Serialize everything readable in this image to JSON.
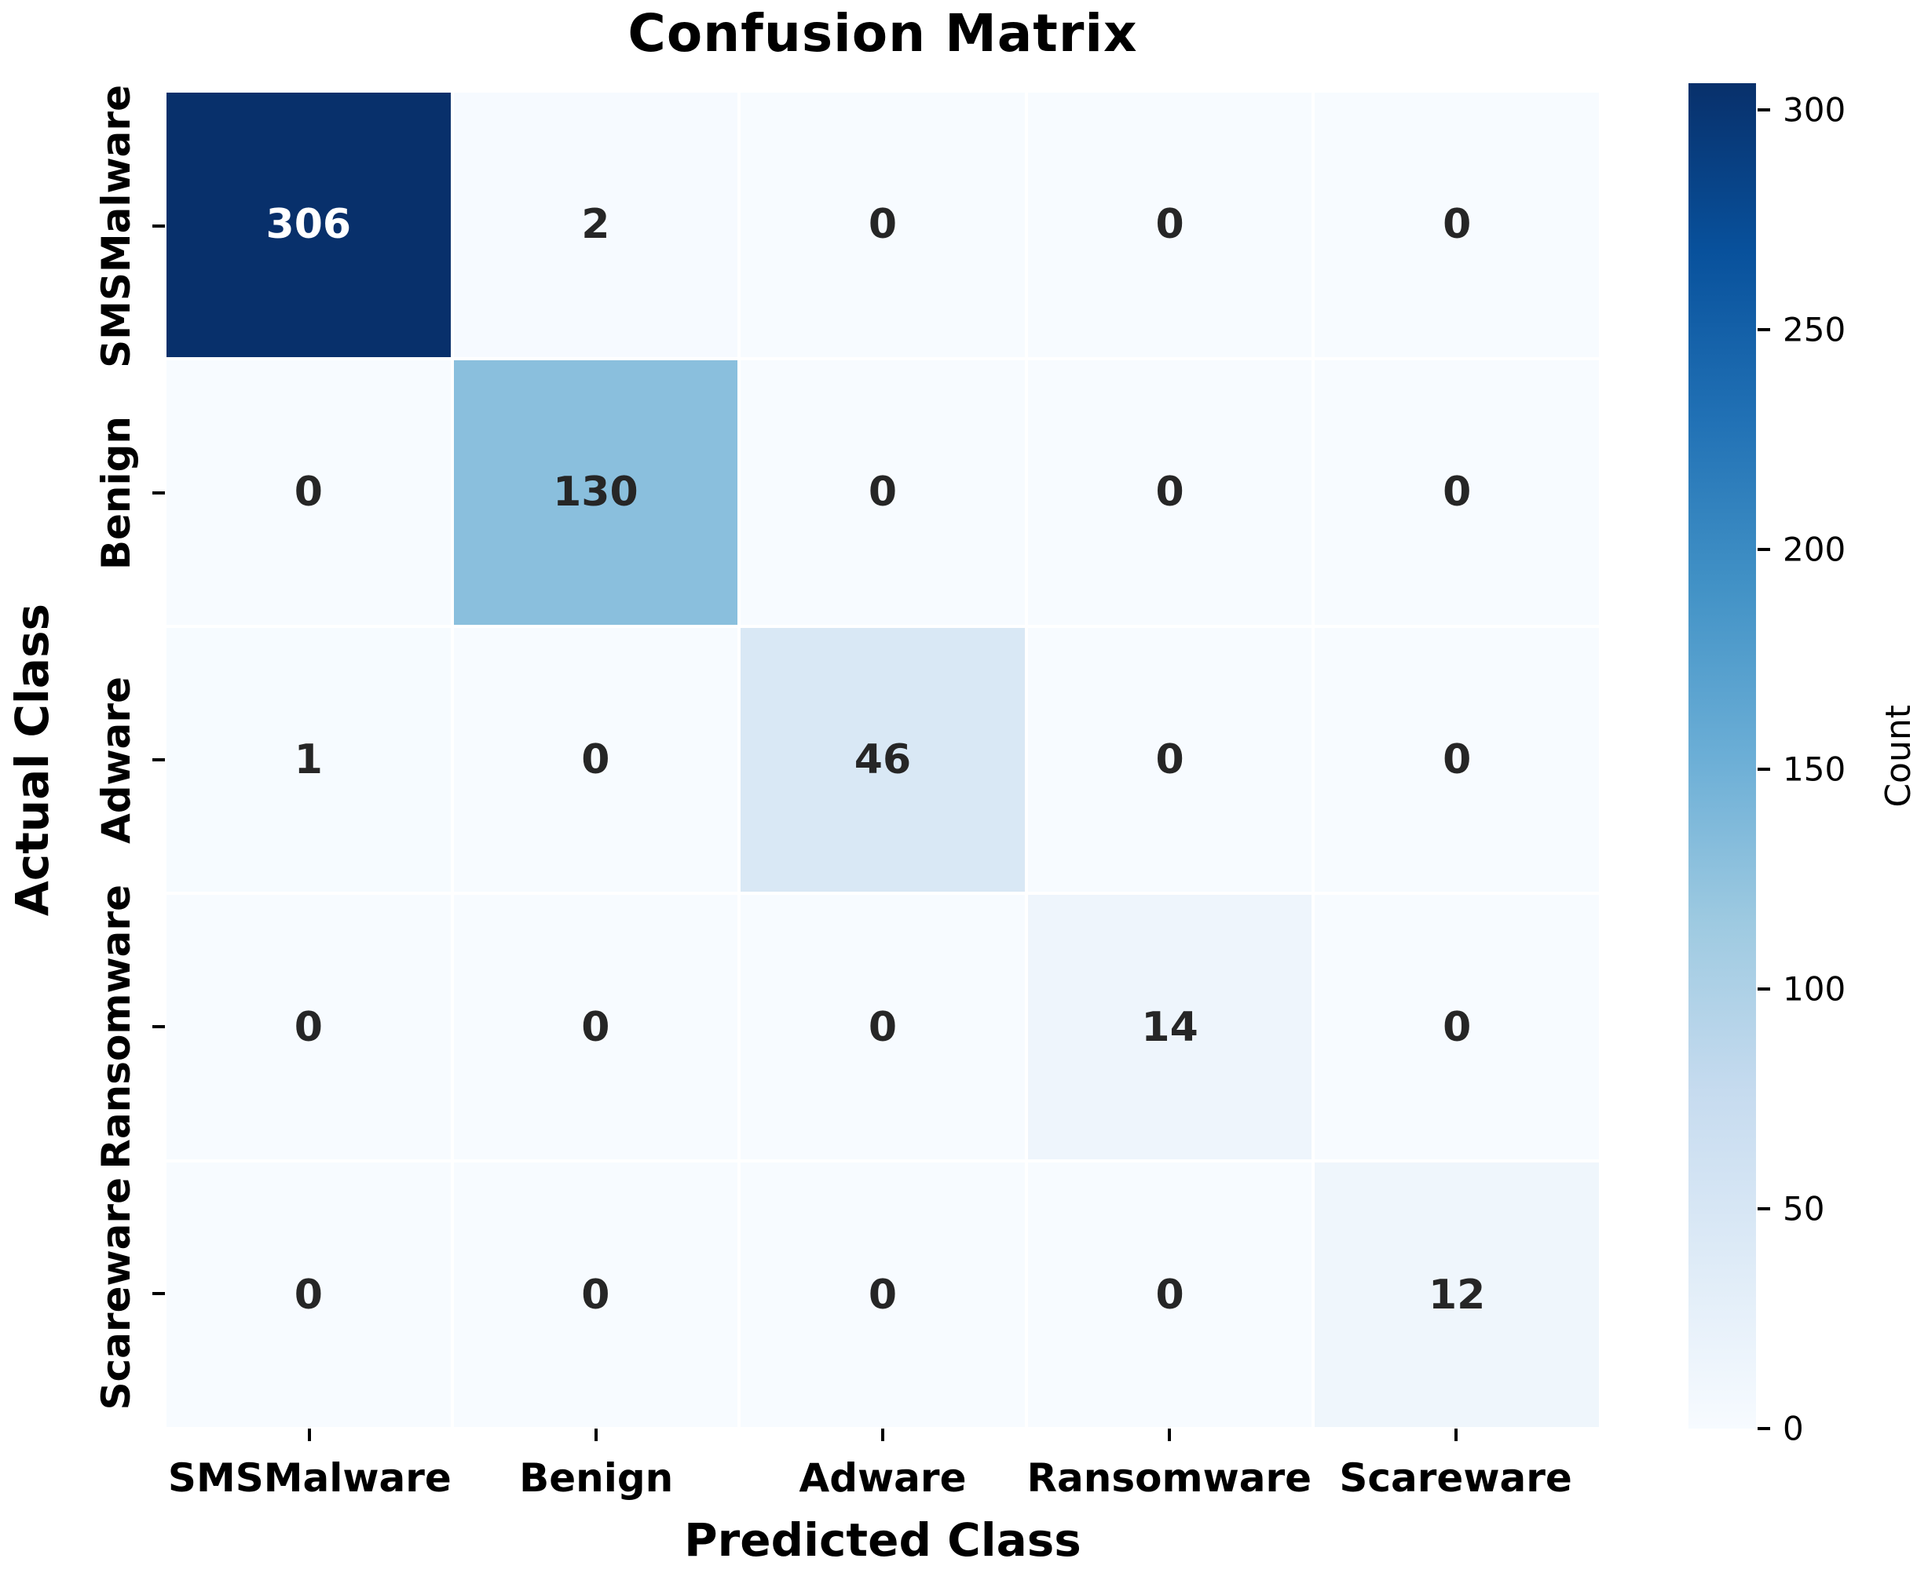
{
  "title": "Confusion Matrix",
  "x_axis_label": "Predicted Class",
  "y_axis_label": "Actual Class",
  "colorbar": {
    "label": "Count",
    "ticks": [
      0,
      50,
      100,
      150,
      200,
      250,
      300
    ],
    "vmin": 0,
    "vmax": 306
  },
  "chart_data": {
    "type": "heatmap",
    "title": "Confusion Matrix",
    "xlabel": "Predicted Class",
    "ylabel": "Actual Class",
    "categories": [
      "SMSMalware",
      "Benign",
      "Adware",
      "Ransomware",
      "Scareware"
    ],
    "x_tick_labels": [
      "SMSMalware",
      "Benign",
      "Adware",
      "Ransomware",
      "Scareware"
    ],
    "y_tick_labels": [
      "SMSMalware",
      "Benign",
      "Adware",
      "Ransomware",
      "Scareware"
    ],
    "matrix": [
      [
        306,
        2,
        0,
        0,
        0
      ],
      [
        0,
        130,
        0,
        0,
        0
      ],
      [
        1,
        0,
        46,
        0,
        0
      ],
      [
        0,
        0,
        0,
        14,
        0
      ],
      [
        0,
        0,
        0,
        0,
        12
      ]
    ],
    "colormap": "Blues",
    "vmin": 0,
    "vmax": 306,
    "grid": "off",
    "legend_position": "right-colorbar",
    "annotations": "cell counts, bold; white text on darkest cell, dark text elsewhere"
  },
  "colors": {
    "background": "#ffffff",
    "cell_gap": "#ffffff",
    "cell_text_dark": "#262626",
    "cell_text_light": "#ffffff",
    "tick_mark": "#000000",
    "blues_stops": [
      [
        0.0,
        "#f7fbff"
      ],
      [
        0.125,
        "#deebf7"
      ],
      [
        0.25,
        "#c6dbef"
      ],
      [
        0.375,
        "#9ecae1"
      ],
      [
        0.5,
        "#6baed6"
      ],
      [
        0.625,
        "#4292c6"
      ],
      [
        0.75,
        "#2171b5"
      ],
      [
        0.875,
        "#08519c"
      ],
      [
        1.0,
        "#08306b"
      ]
    ]
  }
}
